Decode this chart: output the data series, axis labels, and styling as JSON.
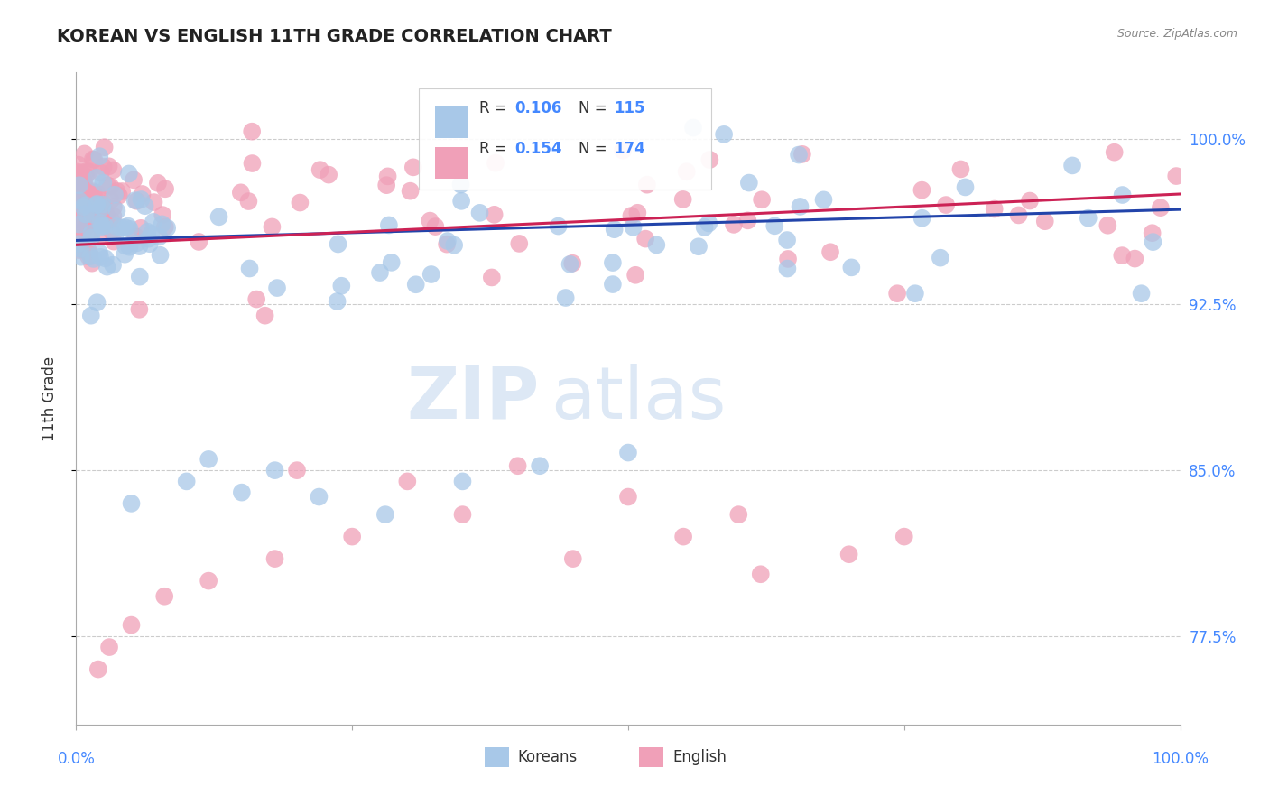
{
  "title": "KOREAN VS ENGLISH 11TH GRADE CORRELATION CHART",
  "source": "Source: ZipAtlas.com",
  "ylabel": "11th Grade",
  "ytick_labels": [
    "77.5%",
    "85.0%",
    "92.5%",
    "100.0%"
  ],
  "ytick_values": [
    0.775,
    0.85,
    0.925,
    1.0
  ],
  "xlim": [
    0.0,
    1.0
  ],
  "ylim": [
    0.735,
    1.03
  ],
  "legend_labels": [
    "Koreans",
    "English"
  ],
  "blue_color": "#a8c8e8",
  "pink_color": "#f0a0b8",
  "blue_line_color": "#2244aa",
  "pink_line_color": "#cc2255",
  "title_color": "#222222",
  "axis_label_color": "#4488ff",
  "watermark_color": "#dde8f5",
  "background_color": "#ffffff",
  "grid_color": "#cccccc",
  "R_blue": 0.106,
  "N_blue": 115,
  "R_pink": 0.154,
  "N_pink": 174,
  "blue_line_y0": 0.954,
  "blue_line_y1": 0.968,
  "pink_line_y0": 0.952,
  "pink_line_y1": 0.975
}
